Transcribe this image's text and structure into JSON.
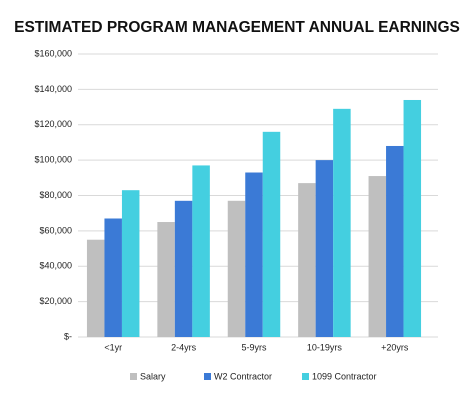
{
  "chart_data": {
    "type": "bar",
    "title": "ESTIMATED PROGRAM MANAGEMENT ANNUAL EARNINGS",
    "categories": [
      "<1yr",
      "2-4yrs",
      "5-9yrs",
      "10-19yrs",
      "+20yrs"
    ],
    "series": [
      {
        "name": "Salary",
        "color": "#bfbfbf",
        "values": [
          55000,
          65000,
          77000,
          87000,
          91000
        ]
      },
      {
        "name": "W2 Contractor",
        "color": "#3b7ad6",
        "values": [
          67000,
          77000,
          93000,
          100000,
          108000
        ]
      },
      {
        "name": "1099 Contractor",
        "color": "#44cfe0",
        "values": [
          83000,
          97000,
          116000,
          129000,
          134000
        ]
      }
    ],
    "ylim": [
      0,
      160000
    ],
    "yticks": [
      {
        "value": 0,
        "label": "$-"
      },
      {
        "value": 20000,
        "label": "$20,000"
      },
      {
        "value": 40000,
        "label": "$40,000"
      },
      {
        "value": 60000,
        "label": "$60,000"
      },
      {
        "value": 80000,
        "label": "$80,000"
      },
      {
        "value": 100000,
        "label": "$100,000"
      },
      {
        "value": 120000,
        "label": "$120,000"
      },
      {
        "value": 140000,
        "label": "$140,000"
      },
      {
        "value": 160000,
        "label": "$160,000"
      }
    ],
    "grid": true,
    "legend": "bottom"
  }
}
